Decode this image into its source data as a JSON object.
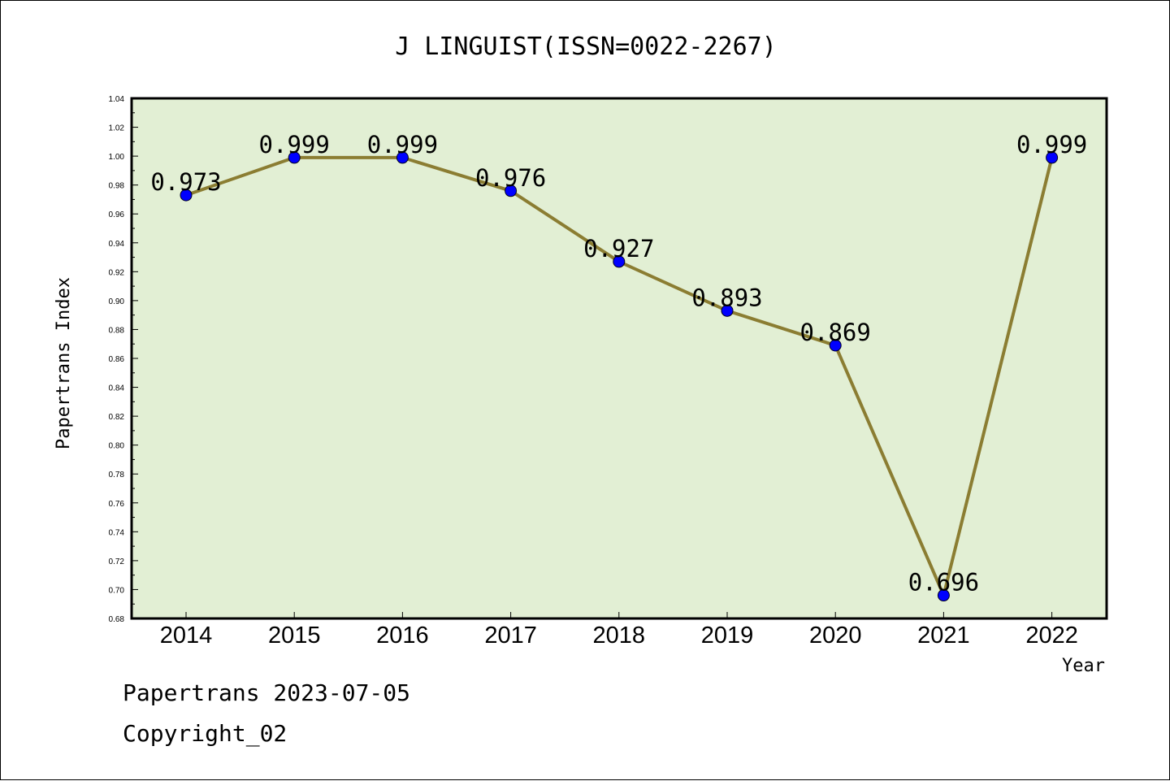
{
  "chart_data": {
    "type": "line",
    "title": "J LINGUIST(ISSN=0022-2267)",
    "xlabel": "Year",
    "ylabel": "Papertrans Index",
    "categories": [
      "2014",
      "2015",
      "2016",
      "2017",
      "2018",
      "2019",
      "2020",
      "2021",
      "2022"
    ],
    "series": [
      {
        "values": [
          0.973,
          0.999,
          0.999,
          0.976,
          0.927,
          0.893,
          0.869,
          0.696,
          0.999
        ]
      }
    ],
    "data_labels": [
      "0.973",
      "0.999",
      "0.999",
      "0.976",
      "0.927",
      "0.893",
      "0.869",
      "0.696",
      "0.999"
    ],
    "ylim": [
      0.68,
      1.04
    ],
    "yticks": [
      "0.68",
      "0.70",
      "0.72",
      "0.74",
      "0.76",
      "0.78",
      "0.80",
      "0.82",
      "0.84",
      "0.86",
      "0.88",
      "0.90",
      "0.92",
      "0.94",
      "0.96",
      "0.98",
      "1.00",
      "1.02",
      "1.04"
    ],
    "grid": false,
    "colors": {
      "line": "#8b7d32",
      "marker": "#0000ff",
      "plot_bg": "#e2efd4"
    }
  },
  "footer": {
    "line1": "Papertrans 2023-07-05",
    "line2": "Copyright_02"
  }
}
